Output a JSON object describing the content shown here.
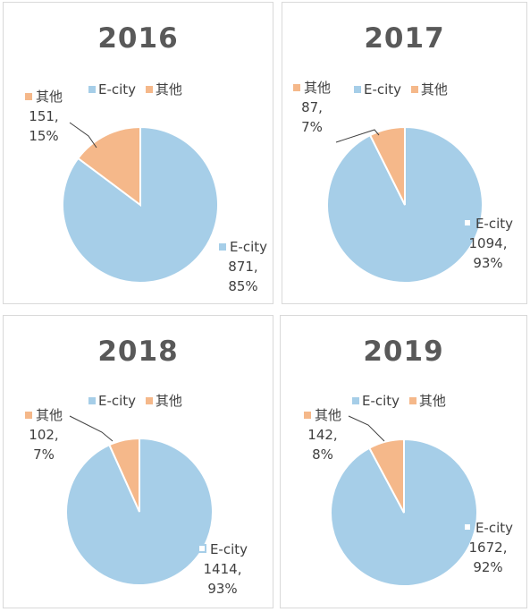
{
  "colors": {
    "ecity": "#a6cee8",
    "other": "#f5b88a",
    "leader": "#404040"
  },
  "chart_data": [
    {
      "type": "pie",
      "title": "2016",
      "categories": [
        "E-city",
        "其他"
      ],
      "values": [
        871,
        151
      ],
      "percent_labels": [
        "85%",
        "15%"
      ],
      "legend_position": "top",
      "legend": [
        "E-city",
        "其他"
      ],
      "data_labels": [
        {
          "name": "E-city",
          "value": "871,",
          "pct": "85%"
        },
        {
          "name": "其他",
          "value": "151,",
          "pct": "15%"
        }
      ]
    },
    {
      "type": "pie",
      "title": "2017",
      "categories": [
        "E-city",
        "其他"
      ],
      "values": [
        1094,
        87
      ],
      "percent_labels": [
        "93%",
        "7%"
      ],
      "legend_position": "top",
      "legend": [
        "E-city",
        "其他"
      ],
      "data_labels": [
        {
          "name": "E-city",
          "value": "1094,",
          "pct": "93%"
        },
        {
          "name": "其他",
          "value": "87,",
          "pct": "7%"
        }
      ]
    },
    {
      "type": "pie",
      "title": "2018",
      "categories": [
        "E-city",
        "其他"
      ],
      "values": [
        1414,
        102
      ],
      "percent_labels": [
        "93%",
        "7%"
      ],
      "legend_position": "top",
      "legend": [
        "E-city",
        "其他"
      ],
      "data_labels": [
        {
          "name": "E-city",
          "value": "1414,",
          "pct": "93%"
        },
        {
          "name": "其他",
          "value": "102,",
          "pct": "7%"
        }
      ]
    },
    {
      "type": "pie",
      "title": "2019",
      "categories": [
        "E-city",
        "其他"
      ],
      "values": [
        1672,
        142
      ],
      "percent_labels": [
        "92%",
        "8%"
      ],
      "legend_position": "top",
      "legend": [
        "E-city",
        "其他"
      ],
      "data_labels": [
        {
          "name": "E-city",
          "value": "1672,",
          "pct": "92%"
        },
        {
          "name": "其他",
          "value": "142,",
          "pct": "8%"
        }
      ]
    }
  ]
}
